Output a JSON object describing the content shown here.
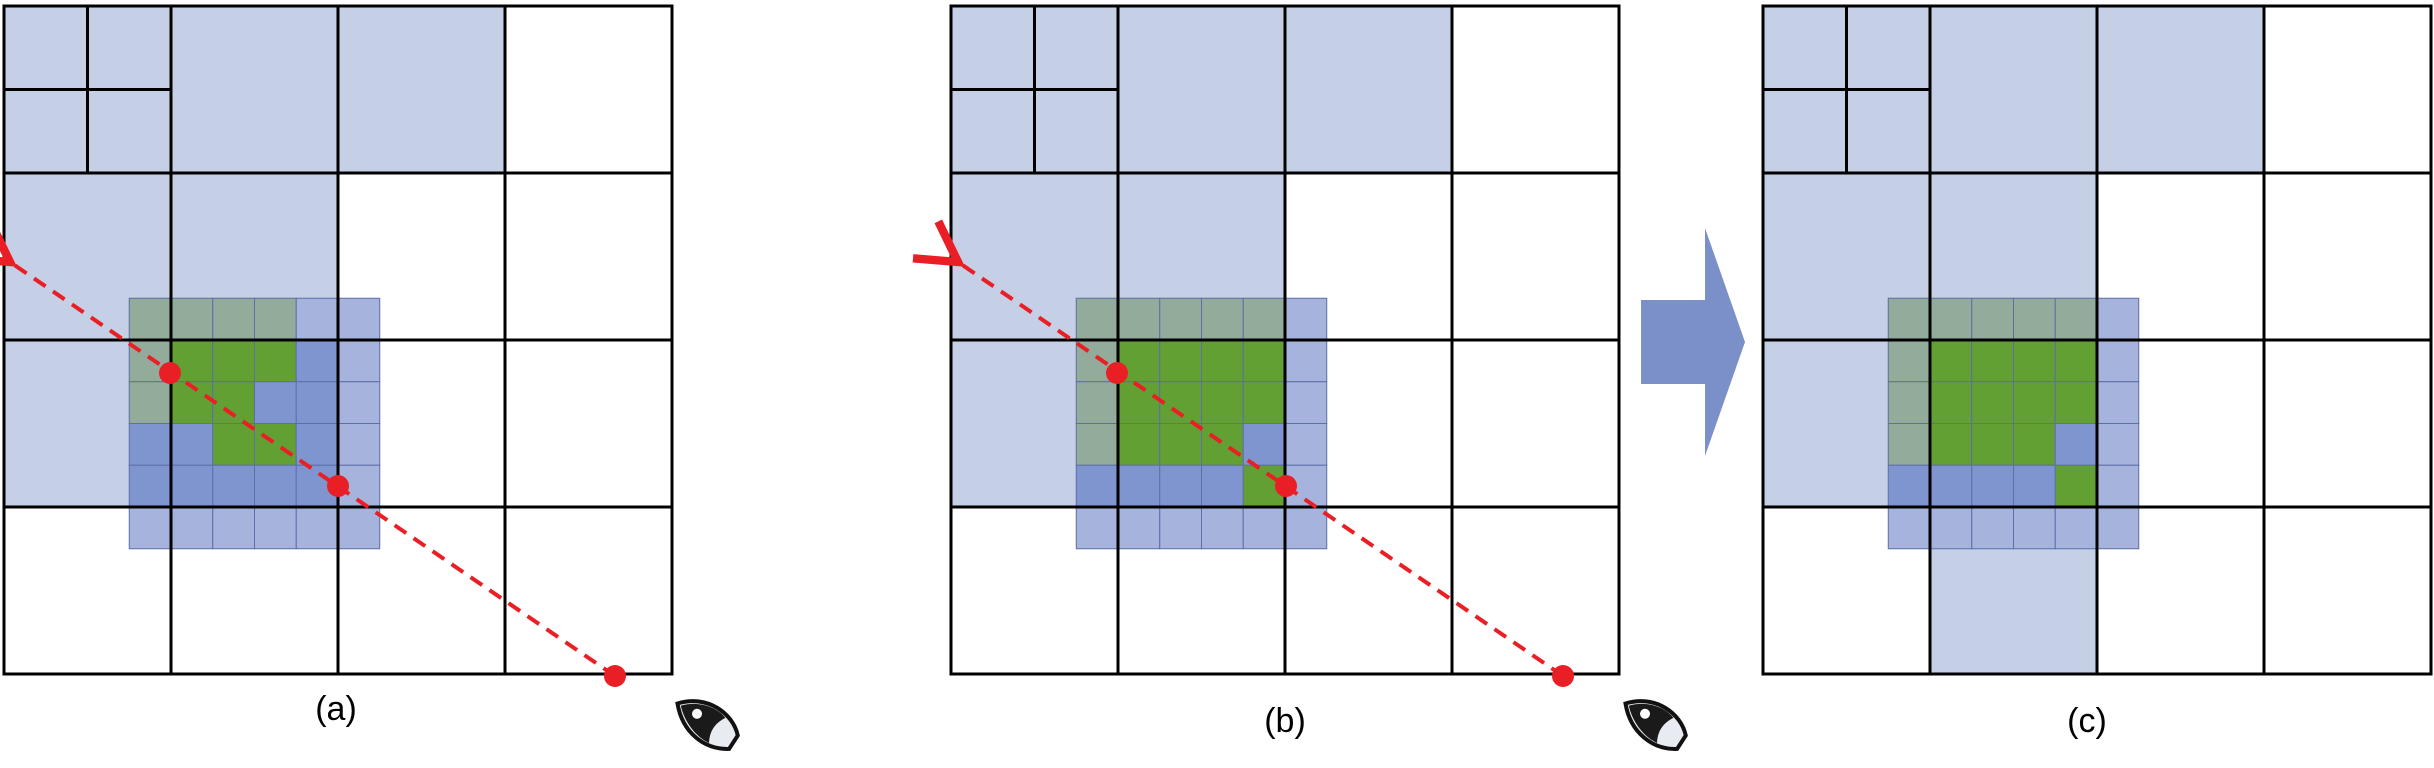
{
  "colors": {
    "light_blue": "#c5cfe6",
    "mid_blue": "#a5b3dd",
    "dark_blue": "#7f95cf",
    "green": "#62a034",
    "sage": "#92ab9b",
    "ray": "#ea1f25",
    "arrow": "#7b8fc8",
    "grid": "#000000"
  },
  "panels": [
    {
      "id": "a",
      "label": "(a)"
    },
    {
      "id": "b",
      "label": "(b)"
    },
    {
      "id": "c",
      "label": "(c)"
    }
  ],
  "icons": {
    "eye": "eye-icon",
    "transition_arrow": "right-arrow-icon"
  }
}
